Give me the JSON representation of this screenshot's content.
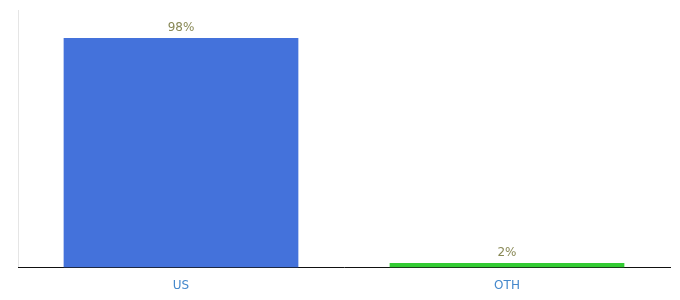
{
  "chart_data": {
    "type": "bar",
    "categories": [
      "US",
      "OTH"
    ],
    "values": [
      98,
      2
    ],
    "colors": [
      "#4472db",
      "#33cc33"
    ],
    "data_labels": true,
    "value_labels": [
      "98%",
      "2%"
    ],
    "ylim": [
      0,
      110
    ],
    "grid": false,
    "tick_labels": "x"
  }
}
